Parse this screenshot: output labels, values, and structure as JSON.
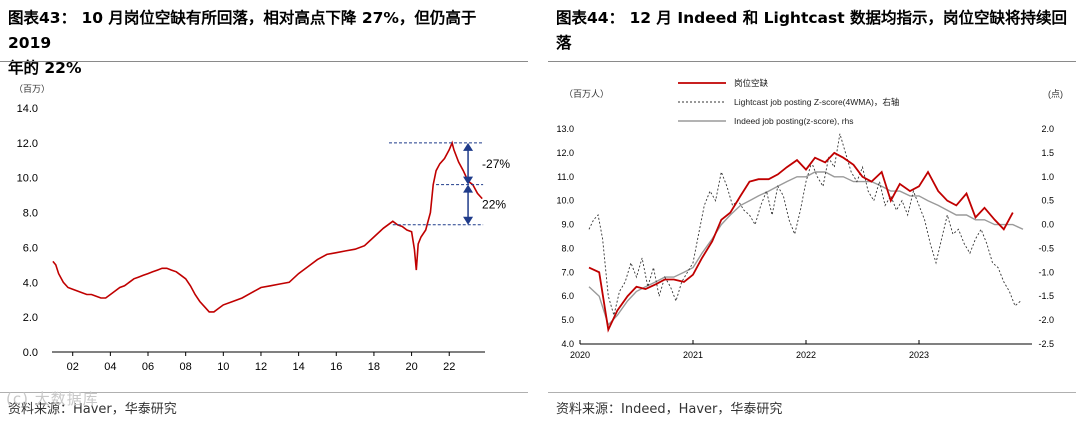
{
  "left": {
    "title_line1": "图表43： 10 月岗位空缺有所回落，相对高点下降 27%，但仍高于 2019",
    "title_line2": "年的 22%",
    "source": "资料来源：Haver，华泰研究",
    "watermark": "(c) 大数据库"
  },
  "right": {
    "title_line1": "图表44： 12 月 Indeed 和 Lightcast 数据均指示，岗位空缺将持续回",
    "title_line2": "落",
    "source": "资料来源：Indeed，Haver，华泰研究"
  },
  "chart_data": [
    {
      "type": "line",
      "ylabel": "（百万）",
      "ylim": [
        0,
        14
      ],
      "yticks": [
        "0.0",
        "2.0",
        "4.0",
        "6.0",
        "8.0",
        "10.0",
        "12.0",
        "14.0"
      ],
      "xticks": [
        "02",
        "04",
        "06",
        "08",
        "10",
        "12",
        "14",
        "16",
        "18",
        "20",
        "22"
      ],
      "xlim": [
        2000.9,
        2023.9
      ],
      "color": "#c00000",
      "series": [
        {
          "x": [
            2000.95,
            2001.1,
            2001.25,
            2001.5,
            2001.75,
            2002.0,
            2002.25,
            2002.5,
            2002.75,
            2003.0,
            2003.25,
            2003.5,
            2003.75,
            2004.0,
            2004.25,
            2004.5,
            2004.75,
            2005.0,
            2005.25,
            2005.5,
            2005.75,
            2006.0,
            2006.25,
            2006.5,
            2006.75,
            2007.0,
            2007.25,
            2007.5,
            2007.75,
            2008.0,
            2008.25,
            2008.5,
            2008.75,
            2009.0,
            2009.25,
            2009.5,
            2009.75,
            2010.0,
            2010.5,
            2011.0,
            2011.5,
            2012.0,
            2012.5,
            2013.0,
            2013.5,
            2014.0,
            2014.5,
            2015.0,
            2015.5,
            2016.0,
            2016.5,
            2017.0,
            2017.5,
            2018.0,
            2018.5,
            2019.0,
            2019.25,
            2019.5,
            2019.75,
            2020.0,
            2020.15,
            2020.25,
            2020.35,
            2020.5,
            2020.75,
            2021.0,
            2021.15,
            2021.3,
            2021.5,
            2021.75,
            2022.0,
            2022.15,
            2022.25,
            2022.5,
            2022.75,
            2023.0,
            2023.25,
            2023.5,
            2023.75
          ],
          "y": [
            5.2,
            5.0,
            4.5,
            4.0,
            3.7,
            3.6,
            3.5,
            3.4,
            3.3,
            3.3,
            3.2,
            3.1,
            3.1,
            3.3,
            3.5,
            3.7,
            3.8,
            4.0,
            4.2,
            4.3,
            4.4,
            4.5,
            4.6,
            4.7,
            4.8,
            4.8,
            4.7,
            4.6,
            4.4,
            4.2,
            3.8,
            3.3,
            2.9,
            2.6,
            2.3,
            2.3,
            2.5,
            2.7,
            2.9,
            3.1,
            3.4,
            3.7,
            3.8,
            3.9,
            4.0,
            4.5,
            4.9,
            5.3,
            5.6,
            5.7,
            5.8,
            5.9,
            6.1,
            6.6,
            7.1,
            7.5,
            7.3,
            7.2,
            7.0,
            6.9,
            5.9,
            4.7,
            6.2,
            6.6,
            7.0,
            8.0,
            9.6,
            10.4,
            10.8,
            11.1,
            11.6,
            12.0,
            11.6,
            10.9,
            10.4,
            9.8,
            9.6,
            9.1,
            8.8
          ]
        }
      ],
      "annotations": [
        {
          "text": "-27%",
          "from": 12.0,
          "to": 9.6
        },
        {
          "text": "22%",
          "from": 9.6,
          "to": 7.3
        }
      ]
    },
    {
      "type": "line",
      "ylabel_left": "（百万人）",
      "ylabel_right": "(点)",
      "ylim_left": [
        4.0,
        13.0
      ],
      "yticks_left": [
        "4.0",
        "5.0",
        "6.0",
        "7.0",
        "8.0",
        "9.0",
        "10.0",
        "11.0",
        "12.0",
        "13.0"
      ],
      "ylim_right": [
        -2.5,
        2.0
      ],
      "yticks_right": [
        "-2.5",
        "-2.0",
        "-1.5",
        "-1.0",
        "-0.5",
        "0.0",
        "0.5",
        "1.0",
        "1.5",
        "2.0"
      ],
      "xticks": [
        "2020",
        "2021",
        "2022",
        "2023"
      ],
      "xlim": [
        2020.0,
        2024.0
      ],
      "legend": [
        "岗位空缺",
        "Lightcast job posting Z-score(4WMA)，右轴",
        "Indeed job posting(z-score), rhs"
      ],
      "series": [
        {
          "name": "岗位空缺",
          "color": "#c00000",
          "axis": "left",
          "x": [
            2020.08,
            2020.17,
            2020.25,
            2020.33,
            2020.42,
            2020.5,
            2020.58,
            2020.67,
            2020.75,
            2020.83,
            2020.92,
            2021.0,
            2021.08,
            2021.17,
            2021.25,
            2021.33,
            2021.42,
            2021.5,
            2021.58,
            2021.67,
            2021.75,
            2021.83,
            2021.92,
            2022.0,
            2022.08,
            2022.17,
            2022.25,
            2022.33,
            2022.42,
            2022.5,
            2022.58,
            2022.67,
            2022.75,
            2022.83,
            2022.92,
            2023.0,
            2023.08,
            2023.17,
            2023.25,
            2023.33,
            2023.42,
            2023.5,
            2023.58,
            2023.67,
            2023.75,
            2023.83
          ],
          "y": [
            7.2,
            7.0,
            4.6,
            5.4,
            6.0,
            6.4,
            6.3,
            6.5,
            6.7,
            6.7,
            6.6,
            6.9,
            7.6,
            8.3,
            9.2,
            9.5,
            10.2,
            10.8,
            10.9,
            10.9,
            11.1,
            11.4,
            11.7,
            11.3,
            11.8,
            11.6,
            12.0,
            11.8,
            11.5,
            11.0,
            10.8,
            11.2,
            10.0,
            10.7,
            10.4,
            10.6,
            11.2,
            10.4,
            10.0,
            9.8,
            10.3,
            9.3,
            9.7,
            9.2,
            8.8,
            9.5
          ]
        },
        {
          "name": "Lightcast job posting Z-score(4WMA)，右轴",
          "color": "#333333",
          "axis": "right",
          "dashed": true,
          "x": [
            2020.08,
            2020.12,
            2020.16,
            2020.2,
            2020.25,
            2020.3,
            2020.35,
            2020.4,
            2020.45,
            2020.5,
            2020.55,
            2020.6,
            2020.65,
            2020.7,
            2020.75,
            2020.8,
            2020.85,
            2020.9,
            2020.95,
            2021.0,
            2021.05,
            2021.1,
            2021.15,
            2021.2,
            2021.25,
            2021.3,
            2021.35,
            2021.4,
            2021.45,
            2021.5,
            2021.55,
            2021.6,
            2021.65,
            2021.7,
            2021.75,
            2021.8,
            2021.85,
            2021.9,
            2021.95,
            2022.0,
            2022.05,
            2022.1,
            2022.15,
            2022.2,
            2022.25,
            2022.3,
            2022.35,
            2022.4,
            2022.45,
            2022.5,
            2022.55,
            2022.6,
            2022.65,
            2022.7,
            2022.75,
            2022.8,
            2022.85,
            2022.9,
            2022.95,
            2023.0,
            2023.05,
            2023.1,
            2023.15,
            2023.2,
            2023.25,
            2023.3,
            2023.35,
            2023.4,
            2023.45,
            2023.5,
            2023.55,
            2023.6,
            2023.65,
            2023.7,
            2023.75,
            2023.8,
            2023.85,
            2023.9
          ],
          "y": [
            -0.1,
            0.1,
            0.2,
            -0.3,
            -1.5,
            -1.9,
            -1.4,
            -1.2,
            -0.8,
            -1.1,
            -0.7,
            -1.3,
            -0.9,
            -1.5,
            -1.1,
            -1.3,
            -1.6,
            -1.2,
            -1.0,
            -0.8,
            -0.2,
            0.4,
            0.7,
            0.5,
            1.1,
            0.8,
            0.4,
            0.5,
            0.3,
            0.2,
            0.0,
            0.4,
            0.7,
            0.2,
            0.8,
            0.6,
            0.1,
            -0.2,
            0.3,
            0.9,
            1.3,
            1.0,
            0.8,
            1.4,
            1.2,
            1.9,
            1.5,
            1.1,
            0.9,
            1.2,
            0.7,
            0.5,
            0.9,
            0.4,
            0.6,
            0.3,
            0.5,
            0.2,
            0.7,
            0.4,
            0.1,
            -0.4,
            -0.8,
            -0.3,
            0.2,
            -0.2,
            -0.1,
            -0.4,
            -0.6,
            -0.3,
            -0.1,
            -0.4,
            -0.8,
            -0.9,
            -1.2,
            -1.4,
            -1.7,
            -1.6
          ]
        },
        {
          "name": "Indeed job posting(z-score), rhs",
          "color": "#9a9a9a",
          "axis": "right",
          "x": [
            2020.08,
            2020.17,
            2020.25,
            2020.33,
            2020.42,
            2020.5,
            2020.58,
            2020.67,
            2020.75,
            2020.83,
            2020.92,
            2021.0,
            2021.08,
            2021.17,
            2021.25,
            2021.33,
            2021.42,
            2021.5,
            2021.58,
            2021.67,
            2021.75,
            2021.83,
            2021.92,
            2022.0,
            2022.08,
            2022.17,
            2022.25,
            2022.33,
            2022.42,
            2022.5,
            2022.58,
            2022.67,
            2022.75,
            2022.83,
            2022.92,
            2023.0,
            2023.08,
            2023.17,
            2023.25,
            2023.33,
            2023.42,
            2023.5,
            2023.58,
            2023.67,
            2023.75,
            2023.83,
            2023.92
          ],
          "y": [
            -1.3,
            -1.5,
            -2.1,
            -1.9,
            -1.6,
            -1.4,
            -1.3,
            -1.2,
            -1.1,
            -1.1,
            -1.0,
            -0.9,
            -0.6,
            -0.3,
            0.0,
            0.2,
            0.4,
            0.5,
            0.6,
            0.7,
            0.8,
            0.9,
            1.0,
            1.0,
            1.1,
            1.1,
            1.0,
            1.0,
            0.9,
            0.9,
            0.9,
            0.8,
            0.7,
            0.7,
            0.6,
            0.6,
            0.5,
            0.4,
            0.3,
            0.2,
            0.2,
            0.1,
            0.1,
            0.0,
            0.0,
            0.0,
            -0.1
          ]
        }
      ]
    }
  ]
}
